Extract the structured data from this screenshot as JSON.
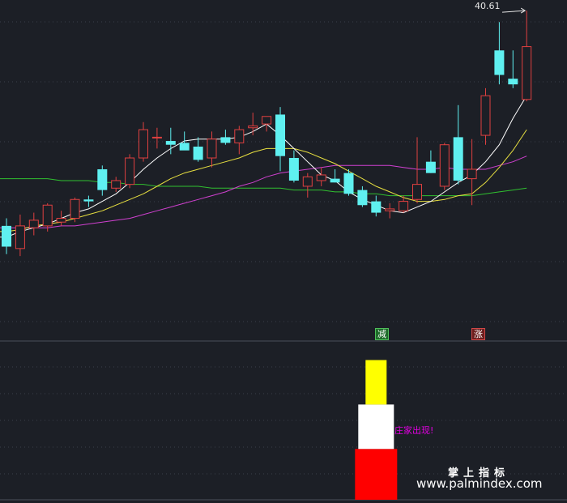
{
  "colors": {
    "background": "#1c1f26",
    "up": "#e04040",
    "down": "#5ff0f0",
    "ma_white": "#ffffff",
    "ma_yellow": "#e8e040",
    "ma_magenta": "#d040d0",
    "ma_green": "#30c030",
    "grid": "#3a3f4a"
  },
  "labels": {
    "peak_price": "40.61",
    "tag_reduce": "减",
    "tag_rise": "涨",
    "zhuang_appears": "庄家出现!",
    "brand_cn": "掌上指标",
    "brand_url": "www.palmindex.com"
  },
  "chart_data": [
    {
      "type": "candlestick",
      "title": "",
      "ylim": [
        24.0,
        41.0
      ],
      "grid": "dotted horizontal",
      "peak_annotation": 40.61,
      "candles": [
        {
          "o": 29.2,
          "h": 29.6,
          "l": 27.7,
          "c": 28.1
        },
        {
          "o": 28.0,
          "h": 29.8,
          "l": 27.6,
          "c": 29.2
        },
        {
          "o": 29.1,
          "h": 29.9,
          "l": 28.7,
          "c": 29.5
        },
        {
          "o": 29.2,
          "h": 30.4,
          "l": 28.9,
          "c": 30.3
        },
        {
          "o": 29.4,
          "h": 30.0,
          "l": 29.2,
          "c": 29.6
        },
        {
          "o": 29.6,
          "h": 30.7,
          "l": 29.4,
          "c": 30.6
        },
        {
          "o": 30.6,
          "h": 30.8,
          "l": 30.2,
          "c": 30.5
        },
        {
          "o": 32.2,
          "h": 32.4,
          "l": 30.8,
          "c": 31.1
        },
        {
          "o": 31.2,
          "h": 31.8,
          "l": 31.0,
          "c": 31.6
        },
        {
          "o": 31.4,
          "h": 33.0,
          "l": 31.2,
          "c": 32.8
        },
        {
          "o": 32.8,
          "h": 34.7,
          "l": 32.6,
          "c": 34.3
        },
        {
          "o": 33.9,
          "h": 34.4,
          "l": 33.3,
          "c": 33.9
        },
        {
          "o": 33.7,
          "h": 34.4,
          "l": 33.0,
          "c": 33.5
        },
        {
          "o": 33.6,
          "h": 34.2,
          "l": 33.3,
          "c": 33.2
        },
        {
          "o": 33.4,
          "h": 33.9,
          "l": 32.6,
          "c": 32.7
        },
        {
          "o": 32.8,
          "h": 34.2,
          "l": 32.3,
          "c": 33.8
        },
        {
          "o": 33.9,
          "h": 34.3,
          "l": 33.5,
          "c": 33.6
        },
        {
          "o": 33.6,
          "h": 34.5,
          "l": 33.0,
          "c": 34.3
        },
        {
          "o": 34.4,
          "h": 35.2,
          "l": 34.0,
          "c": 34.5
        },
        {
          "o": 34.6,
          "h": 35.0,
          "l": 34.2,
          "c": 35.0
        },
        {
          "o": 35.1,
          "h": 35.5,
          "l": 32.1,
          "c": 32.9
        },
        {
          "o": 32.8,
          "h": 33.2,
          "l": 31.5,
          "c": 31.6
        },
        {
          "o": 31.3,
          "h": 32.0,
          "l": 30.7,
          "c": 31.8
        },
        {
          "o": 31.6,
          "h": 32.3,
          "l": 31.3,
          "c": 31.9
        },
        {
          "o": 31.7,
          "h": 32.2,
          "l": 31.5,
          "c": 31.5
        },
        {
          "o": 32.0,
          "h": 32.2,
          "l": 30.8,
          "c": 30.9
        },
        {
          "o": 31.1,
          "h": 31.3,
          "l": 30.2,
          "c": 30.3
        },
        {
          "o": 30.5,
          "h": 30.8,
          "l": 29.7,
          "c": 29.9
        },
        {
          "o": 30.0,
          "h": 30.4,
          "l": 29.6,
          "c": 30.1
        },
        {
          "o": 30.0,
          "h": 30.8,
          "l": 29.9,
          "c": 30.5
        },
        {
          "o": 30.6,
          "h": 33.9,
          "l": 30.4,
          "c": 31.4
        },
        {
          "o": 32.6,
          "h": 33.2,
          "l": 32.0,
          "c": 32.0
        },
        {
          "o": 31.3,
          "h": 33.6,
          "l": 31.1,
          "c": 33.5
        },
        {
          "o": 33.9,
          "h": 35.6,
          "l": 31.4,
          "c": 31.6
        },
        {
          "o": 31.7,
          "h": 33.8,
          "l": 30.3,
          "c": 32.2
        },
        {
          "o": 34.0,
          "h": 36.5,
          "l": 33.5,
          "c": 36.1
        },
        {
          "o": 38.5,
          "h": 40.0,
          "l": 36.7,
          "c": 37.2
        },
        {
          "o": 37.0,
          "h": 38.5,
          "l": 36.5,
          "c": 36.7
        },
        {
          "o": 35.9,
          "h": 40.61,
          "l": 35.8,
          "c": 38.7
        }
      ],
      "ma_white": [
        28.6,
        28.9,
        29.1,
        29.3,
        29.6,
        29.9,
        30.1,
        30.5,
        30.9,
        31.5,
        32.2,
        32.8,
        33.3,
        33.7,
        33.8,
        33.8,
        33.8,
        33.9,
        34.2,
        34.6,
        34.0,
        33.3,
        32.6,
        31.9,
        31.6,
        31.0,
        30.6,
        30.3,
        30.0,
        29.9,
        30.2,
        30.5,
        31.0,
        31.5,
        31.9,
        32.6,
        33.5,
        34.9,
        36.1
      ],
      "ma_yellow": [
        28.9,
        29.0,
        29.2,
        29.3,
        29.4,
        29.6,
        29.8,
        30.0,
        30.3,
        30.6,
        30.9,
        31.3,
        31.7,
        32.0,
        32.2,
        32.4,
        32.6,
        32.8,
        33.1,
        33.3,
        33.3,
        33.3,
        33.1,
        32.8,
        32.5,
        32.1,
        31.7,
        31.3,
        31.0,
        30.7,
        30.5,
        30.5,
        30.6,
        30.8,
        30.9,
        31.5,
        32.3,
        33.2,
        34.3
      ],
      "ma_magenta": [
        29.1,
        29.1,
        29.1,
        29.1,
        29.2,
        29.2,
        29.3,
        29.4,
        29.5,
        29.6,
        29.8,
        30.0,
        30.2,
        30.4,
        30.6,
        30.8,
        31.0,
        31.3,
        31.5,
        31.8,
        32.0,
        32.1,
        32.2,
        32.3,
        32.4,
        32.4,
        32.4,
        32.4,
        32.4,
        32.3,
        32.2,
        32.2,
        32.3,
        32.2,
        32.2,
        32.2,
        32.4,
        32.6,
        32.9
      ],
      "ma_green": [
        31.7,
        31.7,
        31.7,
        31.7,
        31.6,
        31.6,
        31.6,
        31.5,
        31.5,
        31.4,
        31.4,
        31.3,
        31.3,
        31.3,
        31.3,
        31.2,
        31.2,
        31.2,
        31.2,
        31.2,
        31.2,
        31.1,
        31.1,
        31.1,
        31.0,
        31.0,
        30.9,
        30.9,
        30.8,
        30.8,
        30.8,
        30.8,
        30.8,
        30.8,
        30.8,
        30.9,
        31.0,
        31.1,
        31.2
      ]
    },
    {
      "type": "bar",
      "title": "",
      "ylim": [
        0,
        1.0
      ],
      "stacked_column_index": 27,
      "segments": [
        {
          "color": "#ff0000",
          "from": 0.0,
          "to": 0.32
        },
        {
          "color": "#ffffff",
          "from": 0.32,
          "to": 0.6
        },
        {
          "color": "#ffff00",
          "from": 0.6,
          "to": 0.88
        }
      ]
    }
  ]
}
